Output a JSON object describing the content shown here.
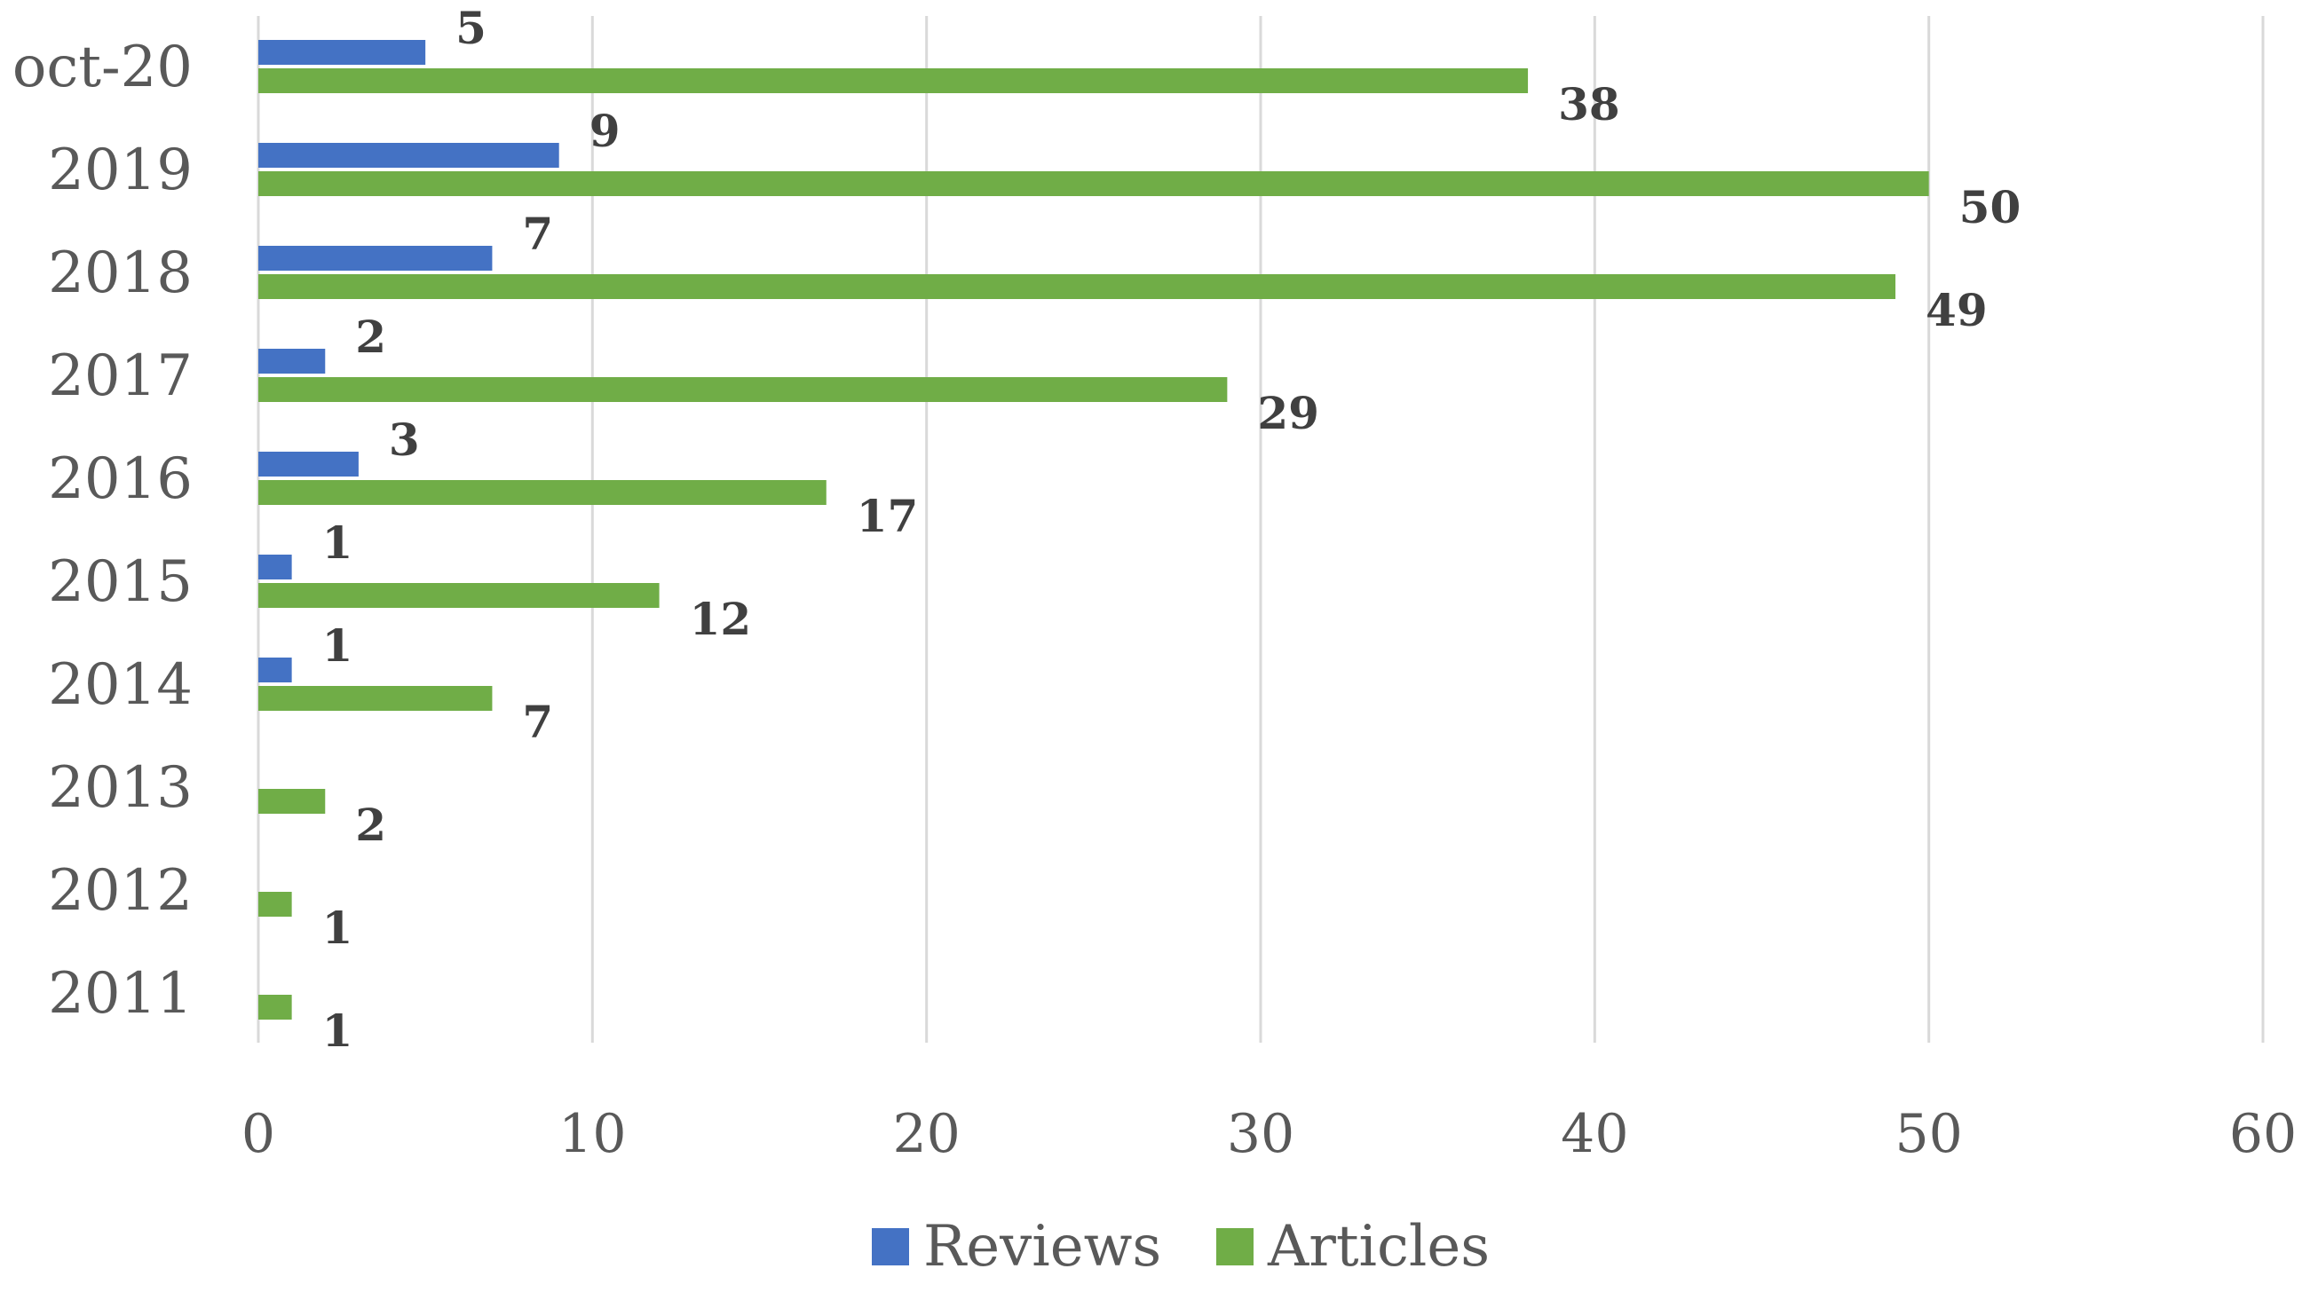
{
  "chart_data": {
    "type": "bar",
    "orientation": "horizontal",
    "categories": [
      "oct-20",
      "2019",
      "2018",
      "2017",
      "2016",
      "2015",
      "2014",
      "2013",
      "2012",
      "2011"
    ],
    "series": [
      {
        "name": "Reviews",
        "color": "#4472c4",
        "values": [
          5,
          9,
          7,
          2,
          3,
          1,
          1,
          null,
          null,
          null
        ]
      },
      {
        "name": "Articles",
        "color": "#70ad47",
        "values": [
          38,
          50,
          49,
          29,
          17,
          12,
          7,
          2,
          1,
          1
        ]
      }
    ],
    "xlim": [
      0,
      60
    ],
    "xticks": [
      0,
      10,
      20,
      30,
      40,
      50,
      60
    ],
    "title": "",
    "xlabel": "",
    "ylabel": "",
    "grid": "vertical",
    "legend_position": "bottom",
    "data_labels": true
  }
}
